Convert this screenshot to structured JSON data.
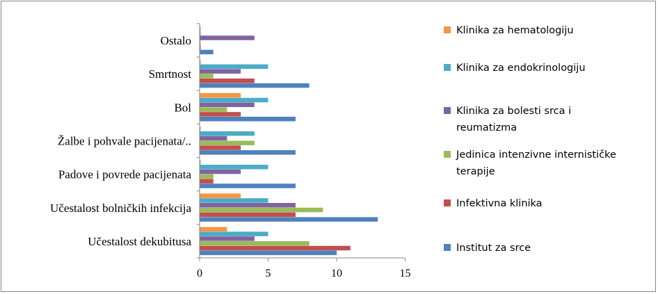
{
  "chart_data": {
    "type": "bar",
    "orientation": "horizontal",
    "categories": [
      "Učestalost dekubitusa",
      "Učestalost bolničkih infekcija",
      "Padove i povrede pacijenata",
      "Žalbe i pohvale pacijenata/..",
      "Bol",
      "Smrtnost",
      "Ostalo"
    ],
    "series": [
      {
        "name": "Institut za srce",
        "color": "#4F81BD",
        "values": [
          10,
          13,
          7,
          7,
          7,
          8,
          1
        ]
      },
      {
        "name": "Infektivna klinika",
        "color": "#C0504D",
        "values": [
          11,
          7,
          1,
          3,
          3,
          4,
          0
        ]
      },
      {
        "name": "Jedinica intenzivne internističke terapije",
        "color": "#9BBB59",
        "values": [
          8,
          9,
          1,
          4,
          2,
          1,
          0
        ]
      },
      {
        "name": "Klinika za bolesti srca i reumatizma",
        "color": "#8064A2",
        "values": [
          4,
          7,
          3,
          2,
          4,
          3,
          4
        ]
      },
      {
        "name": "Klinika za endokrinologiju",
        "color": "#4BACC6",
        "values": [
          5,
          5,
          5,
          4,
          5,
          5,
          0
        ]
      },
      {
        "name": "Klinika za hematologiju",
        "color": "#F79646",
        "values": [
          2,
          3,
          0,
          0,
          3,
          0,
          0
        ]
      }
    ],
    "xlim": [
      0,
      15
    ],
    "xticks": [
      "0",
      "5",
      "10",
      "15"
    ],
    "legend_position": "right",
    "legend_order": [
      5,
      4,
      3,
      2,
      1,
      0
    ],
    "legend_lines": [
      [
        "Klinika za hematologiju"
      ],
      [
        "Klinika za endokrinologiju"
      ],
      [
        "Klinika za bolesti srca i",
        "reumatizma"
      ],
      [
        "Jedinica intenzivne internističke",
        "terapije"
      ],
      [
        "Infektivna klinika"
      ],
      [
        "Institut za srce"
      ]
    ],
    "grid": false
  }
}
